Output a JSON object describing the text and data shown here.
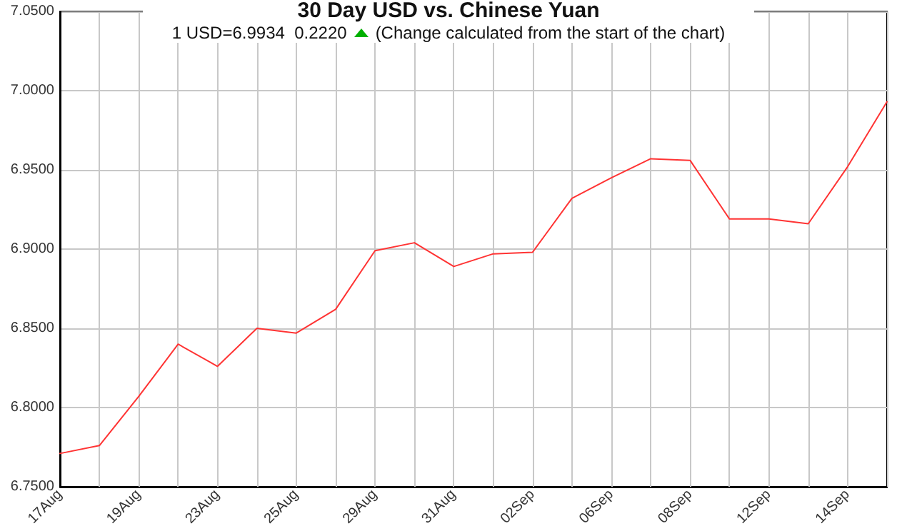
{
  "chart_data": {
    "type": "line",
    "title": "30 Day USD vs. Chinese Yuan",
    "subtitle": "1 USD=6.9934  0.2220",
    "annotations": [
      "(Change calculated from the start of the chart)"
    ],
    "categories": [
      "17Aug",
      null,
      "19Aug",
      null,
      "23Aug",
      null,
      "25Aug",
      null,
      "29Aug",
      null,
      "31Aug",
      null,
      "02Sep",
      null,
      "06Sep",
      null,
      "08Sep",
      null,
      "12Sep",
      null,
      "14Sep",
      null
    ],
    "series": [
      {
        "color": "#ff3333",
        "values": [
          6.771,
          6.776,
          6.807,
          6.84,
          6.826,
          6.85,
          6.847,
          6.862,
          6.899,
          6.904,
          6.889,
          6.897,
          6.898,
          6.932,
          6.945,
          6.957,
          6.956,
          6.919,
          6.919,
          6.916,
          6.952,
          6.993
        ]
      }
    ],
    "ylim": [
      6.75,
      7.05
    ],
    "yticks": [
      {
        "value": 6.75,
        "label": "6.7500"
      },
      {
        "value": 6.8,
        "label": "6.8000"
      },
      {
        "value": 6.85,
        "label": "6.8500"
      },
      {
        "value": 6.9,
        "label": "6.9000"
      },
      {
        "value": 6.95,
        "label": "6.9500"
      },
      {
        "value": 7.0,
        "label": "7.0000"
      },
      {
        "value": 7.05,
        "label": "7.0500"
      }
    ],
    "grid": true,
    "marker": "none",
    "line_style": "solid"
  }
}
